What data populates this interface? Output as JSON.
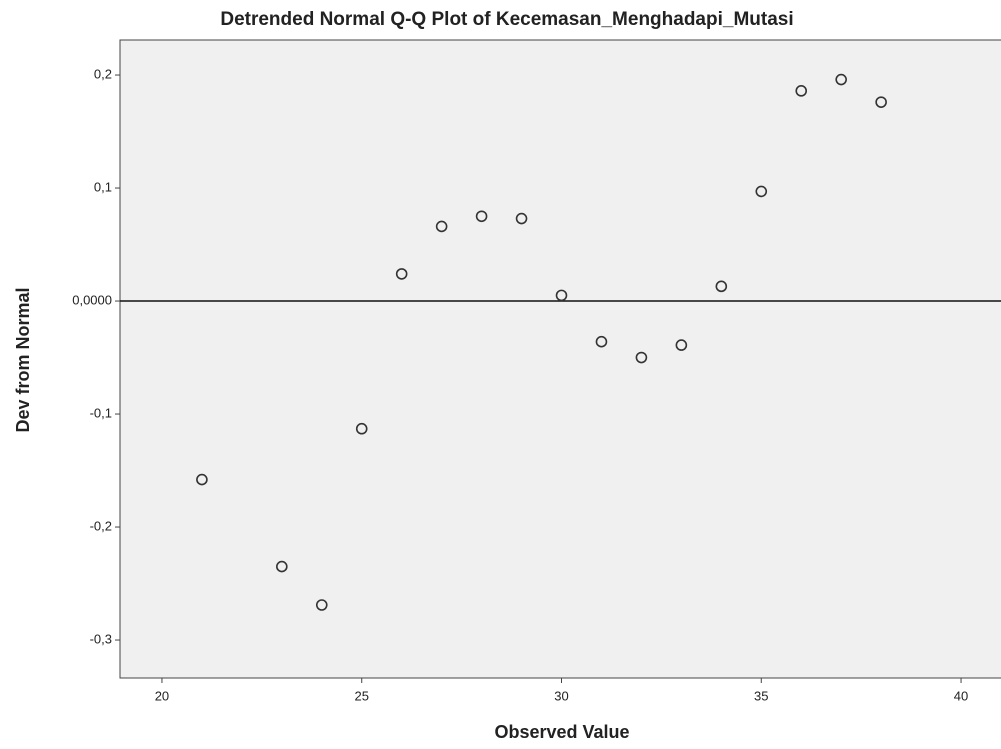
{
  "chart_data": {
    "type": "scatter",
    "title": "Detrended Normal Q-Q Plot of Kecemasan_Menghadapi_Mutasi",
    "x_label": "Observed Value",
    "y_label": "Dev from Normal",
    "x": [
      21,
      23,
      24,
      25,
      26,
      27,
      28,
      29,
      30,
      31,
      32,
      33,
      34,
      35,
      36,
      37,
      38
    ],
    "values": [
      -0.158,
      -0.235,
      -0.269,
      -0.113,
      0.024,
      0.066,
      0.075,
      0.073,
      0.005,
      -0.036,
      -0.05,
      -0.039,
      0.013,
      0.097,
      0.186,
      0.196,
      0.176
    ],
    "xlim": [
      18.95,
      41
    ],
    "ylim": [
      -0.3336,
      0.231
    ],
    "xticks": [
      20,
      25,
      30,
      35,
      40
    ],
    "yticks": [
      {
        "value": 0.2,
        "label": "0,2"
      },
      {
        "value": 0.1,
        "label": "0,1"
      },
      {
        "value": 0,
        "label": "0,0000"
      },
      {
        "value": -0.1,
        "label": "-0,1"
      },
      {
        "value": -0.2,
        "label": "-0,2"
      },
      {
        "value": -0.3,
        "label": "-0,3"
      }
    ],
    "reference_y": 0,
    "color": "#333333",
    "background": "#f0f0f0"
  }
}
